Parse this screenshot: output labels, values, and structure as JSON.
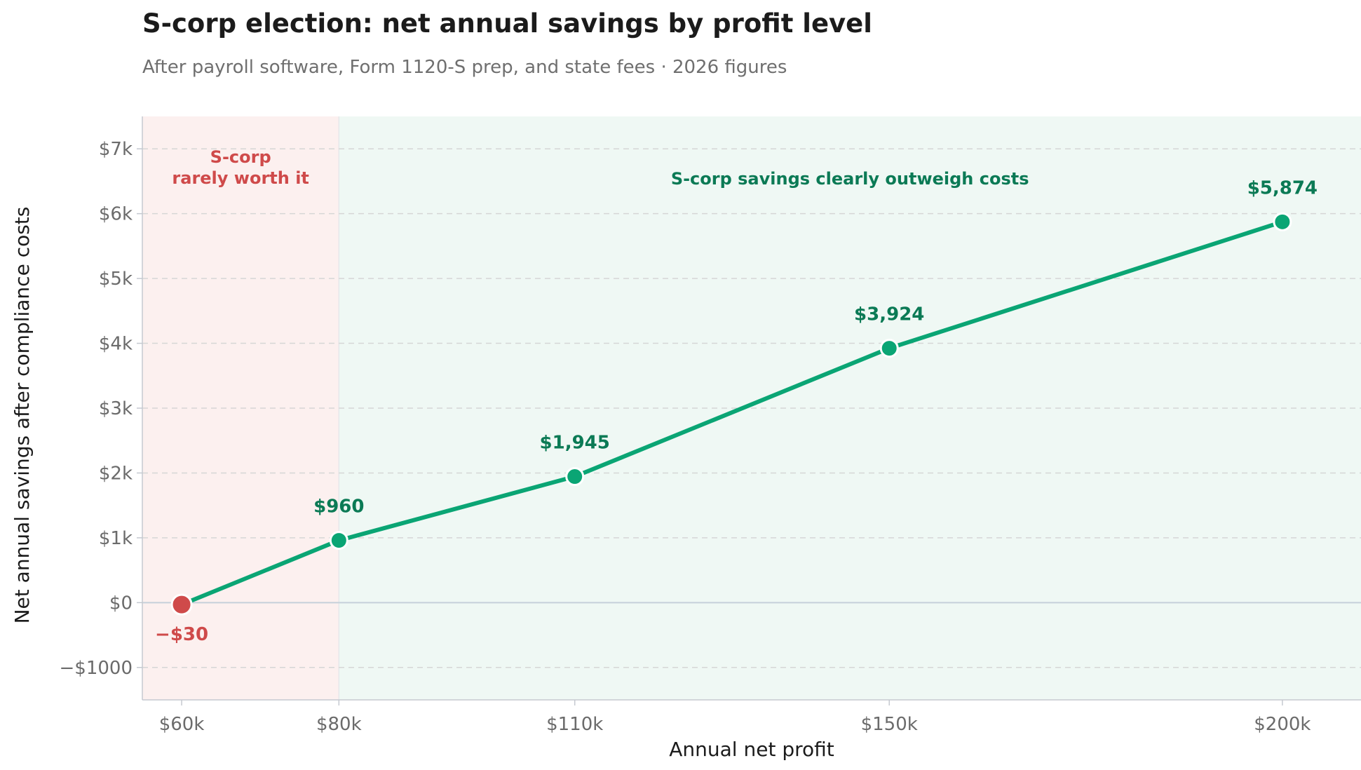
{
  "header": {
    "title": "S-corp election: net annual savings by profit level",
    "subtitle": "After payroll software, Form 1120-S prep, and state fees · 2026 figures"
  },
  "chart_data": {
    "type": "line",
    "xlabel": "Annual net profit",
    "ylabel": "Net annual savings after compliance costs",
    "x": [
      60,
      80,
      110,
      150,
      200
    ],
    "x_tick_labels": [
      "$60k",
      "$80k",
      "$110k",
      "$150k",
      "$200k"
    ],
    "xlim": [
      55,
      210
    ],
    "values": [
      -30,
      960,
      1945,
      3924,
      5874
    ],
    "point_labels": [
      "−$30",
      "$960",
      "$1,945",
      "$3,924",
      "$5,874"
    ],
    "ylim": [
      -1500,
      7500
    ],
    "y_ticks": [
      -1000,
      0,
      1000,
      2000,
      3000,
      4000,
      5000,
      6000,
      7000
    ],
    "y_tick_labels": [
      "−$1000",
      "$0",
      "$1k",
      "$2k",
      "$3k",
      "$4k",
      "$5k",
      "$6k",
      "$7k"
    ],
    "grid": "horizontal dashed",
    "regions": [
      {
        "from": 55,
        "to": 80,
        "label_lines": [
          "S-corp",
          "rarely worth it"
        ],
        "color": "#cf4a4a"
      },
      {
        "from": 80,
        "to": 210,
        "label_lines": [
          "S-corp savings clearly outweigh costs"
        ],
        "color": "#0b7a55"
      }
    ],
    "colors": {
      "line": "#0aa574",
      "positive_point": "#0aa574",
      "negative_point": "#cf4a4a",
      "positive_label": "#0b7a55",
      "negative_label": "#cf4a4a"
    }
  }
}
